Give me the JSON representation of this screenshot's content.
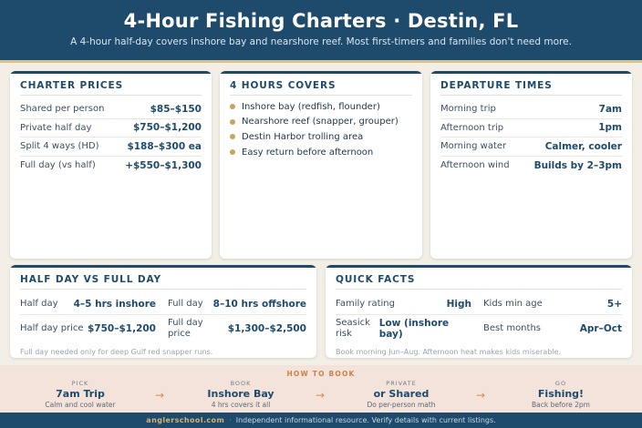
{
  "header": {
    "title": "4-Hour Fishing Charters · Destin, FL",
    "subtitle": "A 4-hour half-day covers inshore bay and nearshore reef. Most first-timers and families don't need more."
  },
  "prices": {
    "title": "CHARTER PRICES",
    "rows": [
      {
        "label": "Shared per person",
        "value": "$85–$150"
      },
      {
        "label": "Private half day",
        "value": "$750–$1,200"
      },
      {
        "label": "Split 4 ways (HD)",
        "value": "$188–$300 ea"
      },
      {
        "label": "Full day (vs half)",
        "value": "+$550–$1,300"
      }
    ]
  },
  "covers": {
    "title": "4 HOURS COVERS",
    "items": [
      "Inshore bay (redfish, flounder)",
      "Nearshore reef (snapper, grouper)",
      "Destin Harbor trolling area",
      "Easy return before afternoon"
    ]
  },
  "departures": {
    "title": "DEPARTURE TIMES",
    "rows": [
      {
        "label": "Morning trip",
        "value": "7am"
      },
      {
        "label": "Afternoon trip",
        "value": "1pm"
      },
      {
        "label": "Morning water",
        "value": "Calmer, cooler"
      },
      {
        "label": "Afternoon wind",
        "value": "Builds by 2–3pm"
      }
    ]
  },
  "half_full": {
    "title": "HALF DAY VS FULL DAY",
    "rows": [
      [
        {
          "label": "Half day",
          "value": "4–5 hrs inshore"
        },
        {
          "label": "Full day",
          "value": "8–10 hrs offshore"
        }
      ],
      [
        {
          "label": "Half day price",
          "value": "$750–$1,200"
        },
        {
          "label": "Full day price",
          "value": "$1,300–$2,500"
        }
      ]
    ],
    "note": "Full day needed only for deep Gulf red snapper runs."
  },
  "facts": {
    "title": "QUICK FACTS",
    "rows": [
      [
        {
          "label": "Family rating",
          "value": "High"
        },
        {
          "label": "Kids min age",
          "value": "5+"
        }
      ],
      [
        {
          "label": "Seasick risk",
          "value": "Low (inshore bay)"
        },
        {
          "label": "Best months",
          "value": "Apr–Oct"
        }
      ]
    ],
    "note": "Book morning Jun–Aug. Afternoon heat makes kids miserable."
  },
  "howto": {
    "title": "HOW TO BOOK",
    "steps": [
      {
        "kicker": "PICK",
        "title": "7am Trip",
        "sub": "Calm and cool water"
      },
      {
        "kicker": "BOOK",
        "title": "Inshore Bay",
        "sub": "4 hrs covers it all"
      },
      {
        "kicker": "PRIVATE",
        "title": "or Shared",
        "sub": "Do per-person math"
      },
      {
        "kicker": "GO",
        "title": "Fishing!",
        "sub": "Back before 2pm"
      }
    ],
    "arrow": "→"
  },
  "footer": {
    "brand": "anglerschool.com",
    "separator": "·",
    "text": "Independent informational resource. Verify details with current listings."
  },
  "colors": {
    "navy": "#1e4a6b",
    "gold": "#c9a657",
    "cream": "#f3efe6",
    "howto_bg": "#f4e3da"
  }
}
